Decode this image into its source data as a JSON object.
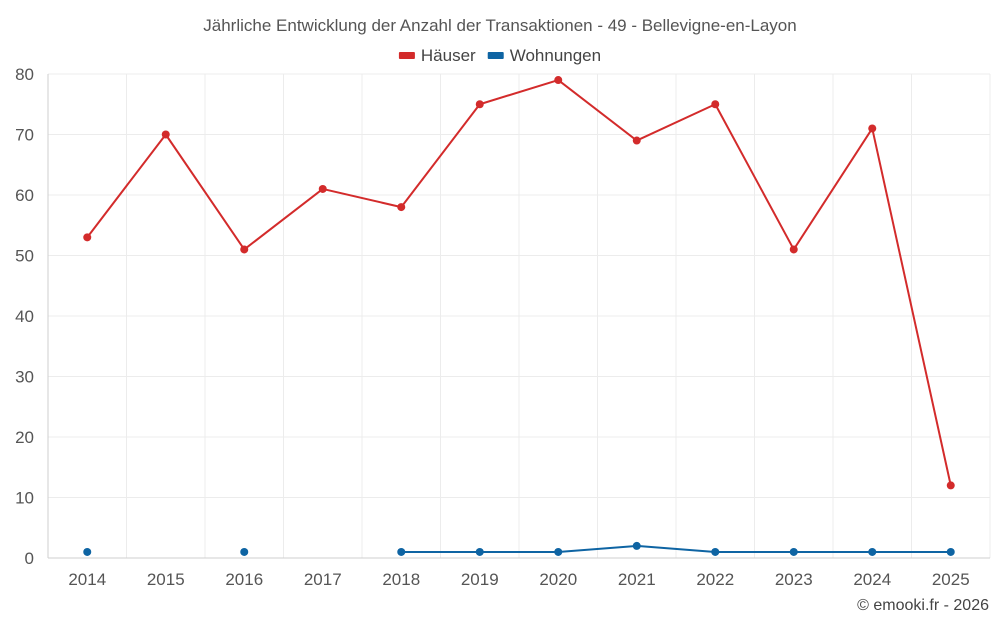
{
  "chart_data": {
    "type": "line",
    "title": "Jährliche Entwicklung der Anzahl der Transaktionen - 49 - Bellevigne-en-Layon",
    "categories": [
      "2014",
      "2015",
      "2016",
      "2017",
      "2018",
      "2019",
      "2020",
      "2021",
      "2022",
      "2023",
      "2024",
      "2025"
    ],
    "ylim": [
      0,
      80
    ],
    "yticks": [
      0,
      10,
      20,
      30,
      40,
      50,
      60,
      70,
      80
    ],
    "grid": true,
    "legend_position": "top-center",
    "series": [
      {
        "name": "Häuser",
        "color": "#d32b2b",
        "values": [
          53,
          70,
          51,
          61,
          58,
          75,
          79,
          69,
          75,
          51,
          71,
          12
        ]
      },
      {
        "name": "Wohnungen",
        "color": "#0e64a3",
        "values": [
          1,
          null,
          1,
          null,
          1,
          1,
          1,
          2,
          1,
          1,
          1,
          1
        ]
      }
    ],
    "credit": "© emooki.fr - 2026"
  }
}
